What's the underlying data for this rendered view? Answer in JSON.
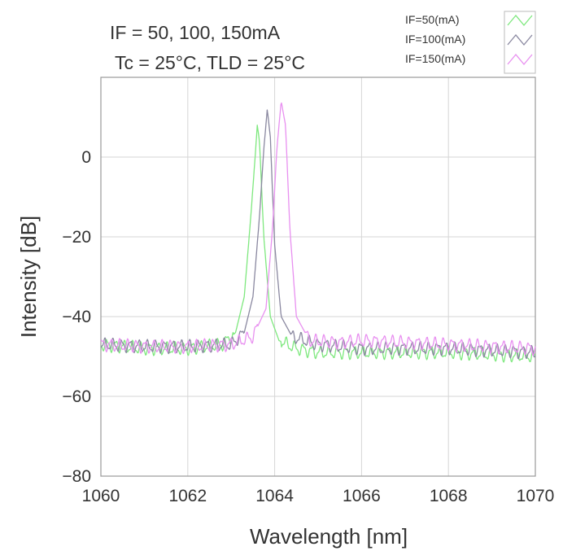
{
  "chart_data": {
    "type": "line",
    "title_lines": [
      "IF = 50, 100, 150mA",
      "Tc = 25°C, TLD = 25°C"
    ],
    "xlabel": "Wavelength [nm]",
    "ylabel": "Intensity [dB]",
    "xlim": [
      1060,
      1070
    ],
    "ylim": [
      -80,
      20
    ],
    "xticks": [
      1060,
      1062,
      1064,
      1066,
      1068,
      1070
    ],
    "yticks": [
      0,
      -20,
      -40,
      -60,
      -80
    ],
    "grid": true,
    "legend_position": "top-right",
    "series": [
      {
        "name": "IF=50(mA)",
        "color": "#7ee87e",
        "peak_x": 1063.6,
        "peak_y": 8,
        "x": [
          1060.0,
          1061.0,
          1062.0,
          1062.8,
          1063.1,
          1063.3,
          1063.45,
          1063.55,
          1063.6,
          1063.65,
          1063.75,
          1063.9,
          1064.1,
          1064.5,
          1065.0,
          1066.0,
          1067.0,
          1068.0,
          1069.0,
          1070.0
        ],
        "y": [
          -47,
          -48,
          -48,
          -47,
          -44,
          -35,
          -15,
          0,
          8,
          4,
          -20,
          -40,
          -46,
          -48,
          -49,
          -49,
          -49,
          -49,
          -49.5,
          -50
        ]
      },
      {
        "name": "IF=100(mA)",
        "color": "#8a88a0",
        "peak_x": 1063.83,
        "peak_y": 12,
        "x": [
          1060.0,
          1061.0,
          1062.0,
          1063.0,
          1063.3,
          1063.5,
          1063.65,
          1063.75,
          1063.83,
          1063.9,
          1064.0,
          1064.15,
          1064.4,
          1065.0,
          1066.0,
          1067.0,
          1068.0,
          1069.0,
          1070.0
        ],
        "y": [
          -47,
          -47.5,
          -47.5,
          -47,
          -44,
          -35,
          -15,
          2,
          12,
          5,
          -22,
          -40,
          -45,
          -47,
          -48,
          -48,
          -48,
          -48.5,
          -49
        ]
      },
      {
        "name": "IF=150(mA)",
        "color": "#e890f0",
        "peak_x": 1064.15,
        "peak_y": 14,
        "x": [
          1060.0,
          1061.0,
          1062.0,
          1063.0,
          1063.5,
          1063.8,
          1063.95,
          1064.05,
          1064.15,
          1064.25,
          1064.35,
          1064.5,
          1064.8,
          1065.5,
          1066.0,
          1067.0,
          1068.0,
          1069.0,
          1070.0
        ],
        "y": [
          -47,
          -47.5,
          -47.5,
          -47,
          -45,
          -38,
          -18,
          2,
          14,
          8,
          -18,
          -40,
          -46,
          -46.5,
          -46,
          -46.5,
          -47,
          -47.5,
          -48
        ]
      }
    ]
  }
}
